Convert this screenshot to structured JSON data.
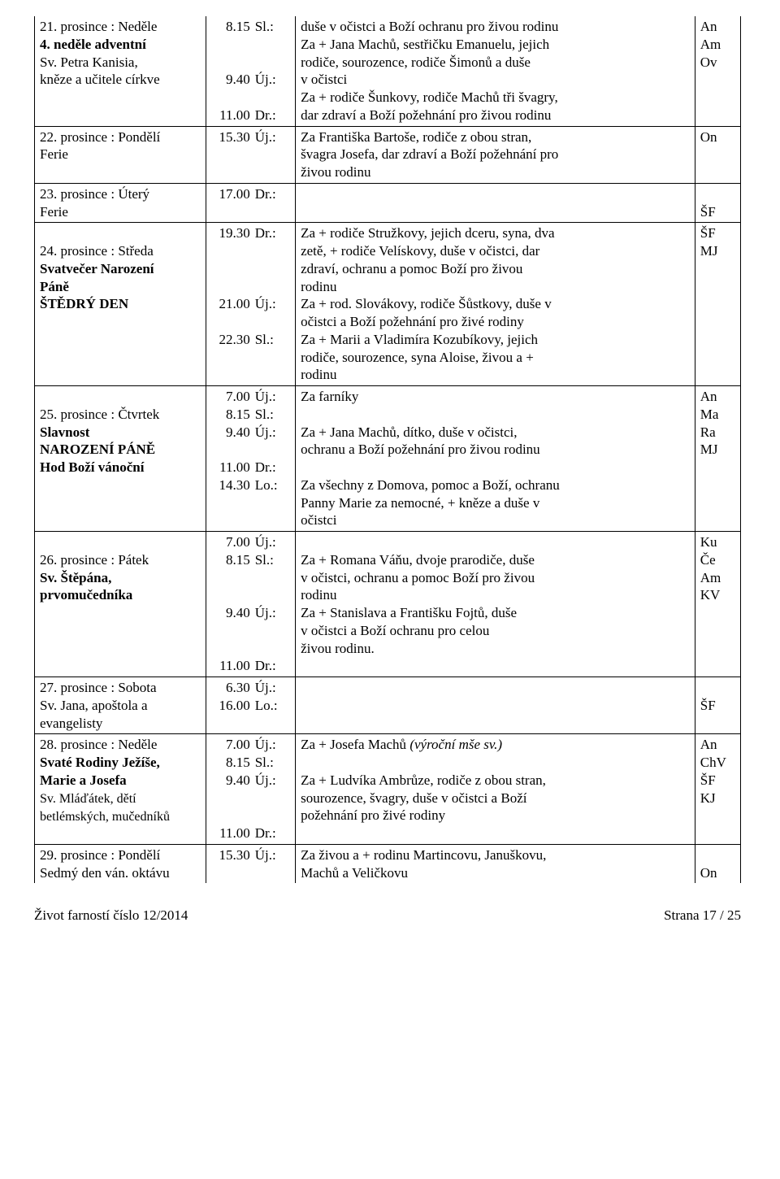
{
  "rows": [
    {
      "left": "21. prosince : Neděle<br><span class=\"bold\">4. neděle adventní</span><br>Sv. Petra Kanisia,<br>kněze a učitele církve",
      "times": [
        [
          "8.15",
          "Sl.:"
        ],
        [
          "",
          "&nbsp;"
        ],
        [
          "",
          "&nbsp;"
        ],
        [
          "9.40",
          "Új.:"
        ],
        [
          "",
          "&nbsp;"
        ],
        [
          "11.00",
          "Dr.:"
        ]
      ],
      "text": "duše v očistci a Boží ochranu pro živou rodinu<br>Za + Jana Machů, sestřičku Emanuelu, jejich<br>rodiče, sourozence, rodiče Šimonů a duše<br>v očistci<br>Za + rodiče Šunkovy, rodiče Machů tři švagry,<br>dar zdraví a Boží požehnání pro živou rodinu",
      "abbr": "An<br>Am<br>Ov",
      "leftClass": "no-top",
      "timesClass": "no-top",
      "textClass": "no-top",
      "abbrClass": "no-top"
    },
    {
      "left": "22. prosince : Pondělí<br>Ferie",
      "times": [
        [
          "15.30",
          "Új.:"
        ]
      ],
      "text": "Za Františka Bartoše, rodiče z obou stran,<br>švagra Josefa, dar zdraví a Boží požehnání pro<br>živou rodinu",
      "abbr": "On"
    },
    {
      "left": "23. prosince : Úterý<br>Ferie",
      "times": [
        [
          "17.00",
          "Dr.:"
        ]
      ],
      "text": "",
      "abbr": "<br>ŠF"
    },
    {
      "left": "<br>24. prosince : Středa<br><span class=\"bold\">Svatvečer Narození<br>Páně</span><br><span class=\"bold\">ŠTĚDRÝ DEN</span>",
      "times": [
        [
          "19.30",
          "Dr.:"
        ],
        [
          "",
          "&nbsp;"
        ],
        [
          "",
          "&nbsp;"
        ],
        [
          "",
          "&nbsp;"
        ],
        [
          "21.00",
          "Új.:"
        ],
        [
          "",
          "&nbsp;"
        ],
        [
          "22.30",
          "Sl.:"
        ]
      ],
      "text": "Za + rodiče Stružkovy, jejich dceru, syna, dva<br>zetě, + rodiče Velískovy, duše v očistci, dar<br>zdraví, ochranu a pomoc Boží pro živou<br>rodinu<br>Za + rod. Slovákovy, rodiče Šůstkovy, duše v<br>očistci a Boží požehnání pro živé rodiny<br>Za + Marii a Vladimíra Kozubíkovy, jejich<br>rodiče, sourozence, syna Aloise, živou a +<br>rodinu",
      "abbr": "ŠF<br>MJ"
    },
    {
      "left": "<br>25. prosince : Čtvrtek<br><span class=\"bold\">Slavnost<br>NAROZENÍ PÁNĚ</span><br><span class=\"bold\">Hod Boží vánoční</span>",
      "times": [
        [
          "7.00",
          "Új.:"
        ],
        [
          "8.15",
          "Sl.:"
        ],
        [
          "9.40",
          "Új.:"
        ],
        [
          "",
          "&nbsp;"
        ],
        [
          "11.00",
          "Dr.:"
        ],
        [
          "14.30",
          "Lo.:"
        ]
      ],
      "text": "Za farníky<br><br>Za + Jana Machů, dítko, duše v očistci,<br>ochranu a Boží požehnání pro živou rodinu<br><br>Za všechny z Domova, pomoc a Boží, ochranu<br>Panny Marie za nemocné, + kněze a duše v<br>očistci",
      "abbr": "An<br>Ma<br>Ra<br>MJ"
    },
    {
      "left": "<br>26. prosince : Pátek<br><span class=\"bold\">Sv. Štěpána,<br>prvomučedníka</span>",
      "times": [
        [
          "7.00",
          "Új.:"
        ],
        [
          "8.15",
          "Sl.:"
        ],
        [
          "",
          "&nbsp;"
        ],
        [
          "",
          "&nbsp;"
        ],
        [
          "9.40",
          "Új.:"
        ],
        [
          "",
          "&nbsp;"
        ],
        [
          "",
          "&nbsp;"
        ],
        [
          "11.00",
          "Dr.:"
        ]
      ],
      "text": "<br>Za + Romana Váňu, dvoje prarodiče, duše<br>v očistci, ochranu a pomoc Boží pro živou<br>rodinu<br>Za + Stanislava a Františku Fojtů, duše<br>v očistci a Boží ochranu pro celou<br>živou rodinu.",
      "abbr": "Ku<br>Če<br>Am<br>KV"
    },
    {
      "left": "27. prosince : Sobota<br>Sv. Jana, apoštola a<br>evangelisty",
      "times": [
        [
          "6.30",
          "Új.:"
        ],
        [
          "16.00",
          "Lo.:"
        ]
      ],
      "text": "",
      "abbr": "<br>ŠF"
    },
    {
      "left": "28. prosince : Neděle<br><span class=\"bold\">Svaté Rodiny Ježíše,<br>Marie a Josefa</span><br><span style=\"font-size:16px\">Sv. Mláďátek, dětí<br>betlémských, mučedníků</span>",
      "times": [
        [
          "7.00",
          "Új.:"
        ],
        [
          "8.15",
          "Sl.:"
        ],
        [
          "9.40",
          "Új.:"
        ],
        [
          "",
          "&nbsp;"
        ],
        [
          "",
          "&nbsp;"
        ],
        [
          "11.00",
          "Dr.:"
        ]
      ],
      "text": "Za + Josefa Machů <span class=\"italic\">(výroční mše sv.)</span><br><br>Za + Ludvíka Ambrůze, rodiče z obou stran,<br>sourozence, švagry, duše v očistci a Boží<br>požehnání pro živé rodiny",
      "abbr": "An<br>ChV<br>ŠF<br>KJ"
    },
    {
      "left": "29. prosince :  Pondělí<br>Sedmý den ván. oktávu",
      "times": [
        [
          "15.30",
          "Új.:"
        ]
      ],
      "text": "Za živou a + rodinu Martincovu, Januškovu,<br>Machů a Veličkovu",
      "abbr": "<br>On",
      "leftClass": "no-bottom",
      "timesClass": "no-bottom",
      "textClass": "no-bottom",
      "abbrClass": "no-bottom"
    }
  ],
  "footer_left": "Život farností číslo 12/2014",
  "footer_right": "Strana 17 / 25"
}
